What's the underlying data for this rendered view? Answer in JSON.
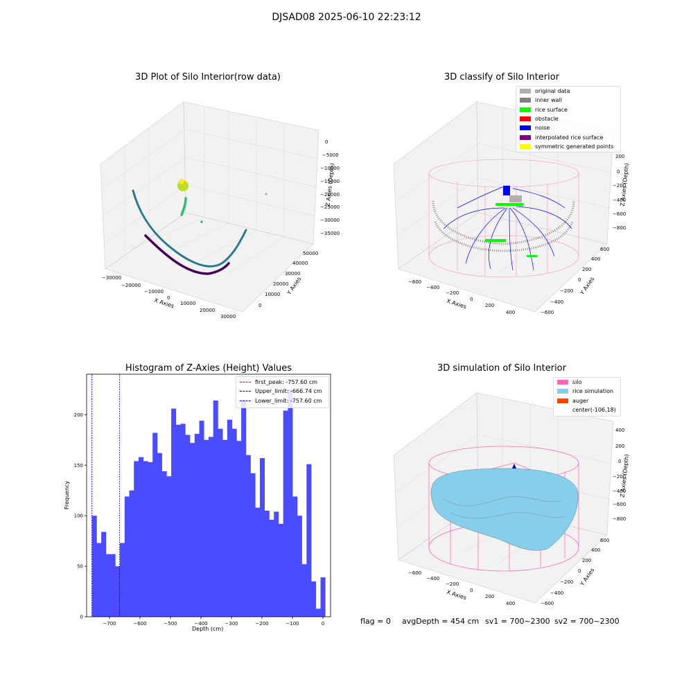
{
  "suptitle": "DJSAD08 2025-06-10 22:23:12",
  "footer": {
    "flag": "flag = 0",
    "avg_depth": "avgDepth = 454 cm",
    "sv1": "sv1 = 700~2300",
    "sv2": "sv2 = 700~2300"
  },
  "colors": {
    "histogram_bar": "#4b4bff",
    "first_peak": "#ff0000",
    "upper_limit": "#000080",
    "lower_limit": "#0000ff",
    "silo_wire": "#ff69b4",
    "rice": "#87ceeb",
    "auger": "#ff4500"
  },
  "chart_data": [
    {
      "type": "scatter",
      "projection": "3d",
      "title": "3D Plot of Silo Interior(row data)",
      "xlabel": "X Axies",
      "ylabel": "Y Axies",
      "zlabel": "Z Axies (Depth)",
      "x_ticks": [
        "−30000",
        "−20000",
        "−10000",
        "0",
        "10000",
        "20000",
        "30000"
      ],
      "y_ticks": [
        "0",
        "10000",
        "20000",
        "30000",
        "40000",
        "50000"
      ],
      "z_ticks": [
        "0",
        "−5000",
        "−10000",
        "−15000",
        "−20000",
        "−25000",
        "−30000",
        "−35000"
      ],
      "colormap": "viridis"
    },
    {
      "type": "scatter",
      "projection": "3d",
      "title": "3D classify of Silo Interior",
      "xlabel": "X Axies",
      "ylabel": "Y Axies",
      "zlabel": "Z Axies (Depth)",
      "x_ticks": [
        "−600",
        "−400",
        "−200",
        "0",
        "200",
        "400"
      ],
      "y_ticks": [
        "−600",
        "−400",
        "−200",
        "0",
        "200",
        "400",
        "600"
      ],
      "z_ticks": [
        "200",
        "0",
        "−200",
        "−400",
        "−600",
        "−800"
      ],
      "legend": [
        {
          "label": "original data",
          "color": "#b0b0b0"
        },
        {
          "label": "inner wall",
          "color": "#808080"
        },
        {
          "label": "rice surface",
          "color": "#00ff00"
        },
        {
          "label": "obstacle",
          "color": "#ff0000"
        },
        {
          "label": "noise",
          "color": "#0000ff"
        },
        {
          "label": "interpolated rice surface",
          "color": "#800080"
        },
        {
          "label": "symmetric generated points",
          "color": "#ffff00"
        }
      ],
      "legend_loc": "upper right"
    },
    {
      "type": "bar",
      "title": "Histogram of Z-Axies (Height) Values",
      "xlabel": "Depth (cm)",
      "ylabel": "Frequency",
      "xlim": [
        -775,
        25
      ],
      "ylim": [
        0,
        240
      ],
      "x_ticks": [
        -700,
        -600,
        -500,
        -400,
        -300,
        -200,
        -100,
        0
      ],
      "y_ticks": [
        0,
        50,
        100,
        150,
        200
      ],
      "bin_start": -757.6,
      "bin_width": 15.3,
      "values": [
        100,
        73,
        84,
        62,
        62,
        50,
        73,
        119,
        125,
        154,
        158,
        154,
        153,
        182,
        162,
        144,
        139,
        206,
        190,
        191,
        180,
        172,
        181,
        194,
        175,
        178,
        214,
        186,
        175,
        195,
        186,
        174,
        215,
        160,
        142,
        108,
        157,
        105,
        96,
        104,
        92,
        204,
        225,
        119,
        100,
        52,
        151,
        35,
        8,
        39
      ],
      "vlines": [
        {
          "name": "first_peak: -757.60 cm",
          "x": -757.6,
          "color": "#ff0000"
        },
        {
          "name": "Upper_limit: -666.74 cm",
          "x": -666.74,
          "color": "#000080"
        },
        {
          "name": "Lower_limit: -757.60 cm",
          "x": -757.6,
          "color": "#0000ff"
        }
      ],
      "legend_loc": "upper right"
    },
    {
      "type": "surface",
      "projection": "3d",
      "title": "3D simulation of Silo Interior",
      "xlabel": "X Axies",
      "ylabel": "Y Axies",
      "zlabel": "Z Axies (Depth)",
      "x_ticks": [
        "−600",
        "−400",
        "−200",
        "0",
        "200",
        "400"
      ],
      "y_ticks": [
        "−600",
        "−400",
        "−200",
        "0",
        "200",
        "400",
        "600"
      ],
      "z_ticks": [
        "400",
        "200",
        "0",
        "−200",
        "−400",
        "−600",
        "−800"
      ],
      "legend": [
        {
          "label": "silo",
          "color": "#ff69b4"
        },
        {
          "label": "rice simulation",
          "color": "#87ceeb"
        },
        {
          "label": "auger",
          "color": "#ff4500"
        },
        {
          "label": "center(-106,18)",
          "color": ""
        }
      ],
      "legend_loc": "upper right"
    }
  ]
}
